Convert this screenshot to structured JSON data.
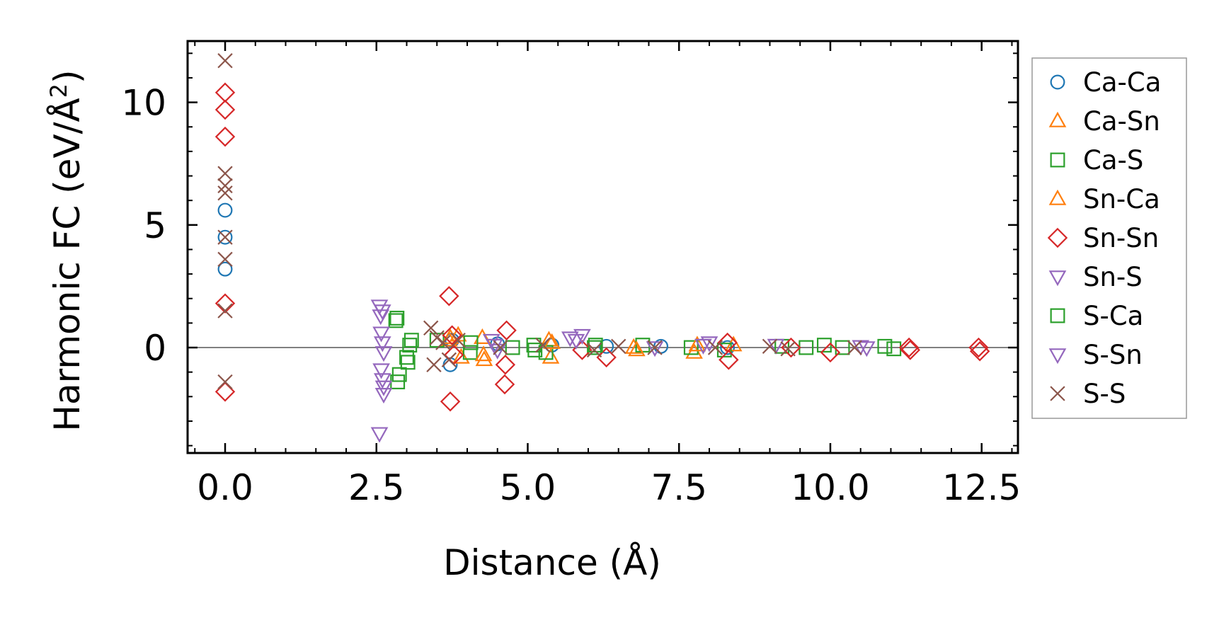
{
  "chart_data": {
    "type": "scatter",
    "xlabel": "Distance (Å)",
    "ylabel_main": "Harmonic FC (eV/Å",
    "ylabel_sup": "2",
    "ylabel_close": ")",
    "xlim": [
      -0.62,
      13.1
    ],
    "ylim": [
      -4.3,
      12.5
    ],
    "xticks": [
      0.0,
      2.5,
      5.0,
      7.5,
      10.0,
      12.5
    ],
    "xtick_labels": [
      "0.0",
      "2.5",
      "5.0",
      "7.5",
      "10.0",
      "12.5"
    ],
    "yticks": [
      0,
      5,
      10
    ],
    "ytick_labels": [
      "0",
      "5",
      "10"
    ],
    "zero_line": true,
    "legend_position": "right",
    "series": [
      {
        "name": "Ca-Ca",
        "color": "#1f77b4",
        "marker": "circle",
        "points": [
          [
            0,
            5.6
          ],
          [
            0,
            4.5
          ],
          [
            0,
            3.2
          ],
          [
            3.72,
            -0.7
          ],
          [
            3.75,
            0.3
          ],
          [
            4.5,
            0.15
          ],
          [
            5.4,
            0.1
          ],
          [
            6.3,
            0.05
          ],
          [
            7.2,
            0.05
          ],
          [
            8.3,
            0.0
          ]
        ]
      },
      {
        "name": "Ca-Sn",
        "color": "#ff7f0e",
        "marker": "triangle-up",
        "points": [
          [
            3.7,
            0.3
          ],
          [
            3.85,
            0.5
          ],
          [
            3.9,
            -0.4
          ],
          [
            4.25,
            0.4
          ],
          [
            4.28,
            -0.5
          ],
          [
            5.35,
            0.3
          ],
          [
            5.38,
            -0.4
          ],
          [
            6.75,
            0.0
          ],
          [
            7.75,
            -0.2
          ],
          [
            8.4,
            0.1
          ]
        ]
      },
      {
        "name": "Ca-S",
        "color": "#2ca02c",
        "marker": "square",
        "points": [
          [
            2.82,
            1.1
          ],
          [
            2.85,
            -1.4
          ],
          [
            2.88,
            -1.1
          ],
          [
            3.02,
            -0.6
          ],
          [
            3.05,
            0.1
          ],
          [
            3.08,
            0.3
          ],
          [
            3.5,
            0.3
          ],
          [
            4.05,
            -0.2
          ],
          [
            4.75,
            0.0
          ],
          [
            5.1,
            0.1
          ],
          [
            5.3,
            -0.2
          ],
          [
            6.1,
            0.0
          ],
          [
            6.9,
            0.1
          ],
          [
            7.7,
            0.0
          ],
          [
            8.25,
            -0.1
          ],
          [
            9.2,
            0.05
          ],
          [
            9.6,
            0.0
          ],
          [
            9.9,
            0.1
          ],
          [
            10.2,
            0.0
          ],
          [
            10.9,
            0.05
          ],
          [
            11.05,
            -0.05
          ]
        ]
      },
      {
        "name": "Sn-Ca",
        "color": "#ff7f0e",
        "marker": "triangle-up",
        "points": [
          [
            3.72,
            0.4
          ],
          [
            4.27,
            -0.3
          ],
          [
            5.4,
            0.2
          ],
          [
            6.8,
            -0.1
          ],
          [
            7.8,
            0.1
          ]
        ]
      },
      {
        "name": "Sn-Sn",
        "color": "#d62728",
        "marker": "diamond",
        "points": [
          [
            0,
            10.4
          ],
          [
            0,
            9.7
          ],
          [
            0,
            8.6
          ],
          [
            0,
            1.8
          ],
          [
            0,
            -1.8
          ],
          [
            3.7,
            2.1
          ],
          [
            3.72,
            -2.2
          ],
          [
            3.75,
            0.5
          ],
          [
            3.78,
            -0.3
          ],
          [
            4.65,
            0.7
          ],
          [
            4.63,
            -0.7
          ],
          [
            4.62,
            -1.5
          ],
          [
            5.9,
            -0.1
          ],
          [
            6.3,
            -0.4
          ],
          [
            8.3,
            0.2
          ],
          [
            8.32,
            -0.5
          ],
          [
            9.35,
            0.0
          ],
          [
            10.0,
            -0.2
          ],
          [
            11.3,
            0.0
          ],
          [
            11.32,
            -0.1
          ],
          [
            12.45,
            0.0
          ],
          [
            12.47,
            -0.15
          ]
        ]
      },
      {
        "name": "Sn-S",
        "color": "#9467bd",
        "marker": "triangle-down",
        "points": [
          [
            2.55,
            1.7
          ],
          [
            2.57,
            1.3
          ],
          [
            2.58,
            0.6
          ],
          [
            2.6,
            0.2
          ],
          [
            2.62,
            -0.2
          ],
          [
            2.58,
            -0.9
          ],
          [
            2.6,
            -1.3
          ],
          [
            2.62,
            -1.9
          ],
          [
            2.55,
            -3.5
          ],
          [
            4.4,
            0.3
          ],
          [
            4.5,
            -0.1
          ],
          [
            5.7,
            0.4
          ],
          [
            5.9,
            0.5
          ],
          [
            7.1,
            0.0
          ],
          [
            8.0,
            0.2
          ],
          [
            9.1,
            0.1
          ],
          [
            10.5,
            0.05
          ]
        ]
      },
      {
        "name": "S-Ca",
        "color": "#2ca02c",
        "marker": "square",
        "points": [
          [
            2.84,
            1.2
          ],
          [
            3.0,
            -0.4
          ],
          [
            4.06,
            0.2
          ],
          [
            5.12,
            -0.1
          ],
          [
            6.12,
            0.1
          ]
        ]
      },
      {
        "name": "S-Sn",
        "color": "#9467bd",
        "marker": "triangle-down",
        "points": [
          [
            2.6,
            1.5
          ],
          [
            2.62,
            -1.6
          ],
          [
            4.45,
            0.1
          ],
          [
            5.8,
            0.3
          ],
          [
            7.9,
            0.1
          ],
          [
            10.6,
            0.0
          ]
        ]
      },
      {
        "name": "S-S",
        "color": "#8c564b",
        "marker": "x",
        "points": [
          [
            0,
            11.7
          ],
          [
            0,
            7.1
          ],
          [
            0,
            6.6
          ],
          [
            0,
            6.3
          ],
          [
            0,
            4.5
          ],
          [
            0,
            3.6
          ],
          [
            0,
            1.5
          ],
          [
            0,
            -1.4
          ],
          [
            3.4,
            0.8
          ],
          [
            3.5,
            0.4
          ],
          [
            3.45,
            -0.7
          ],
          [
            3.6,
            0.2
          ],
          [
            3.7,
            -0.5
          ],
          [
            3.85,
            0.3
          ],
          [
            4.55,
            0.0
          ],
          [
            5.25,
            0.1
          ],
          [
            6.1,
            -0.1
          ],
          [
            6.5,
            0.05
          ],
          [
            7.1,
            0.0
          ],
          [
            8.1,
            0.0
          ],
          [
            9.0,
            0.05
          ],
          [
            9.3,
            -0.05
          ],
          [
            10.4,
            0.0
          ]
        ]
      }
    ]
  }
}
